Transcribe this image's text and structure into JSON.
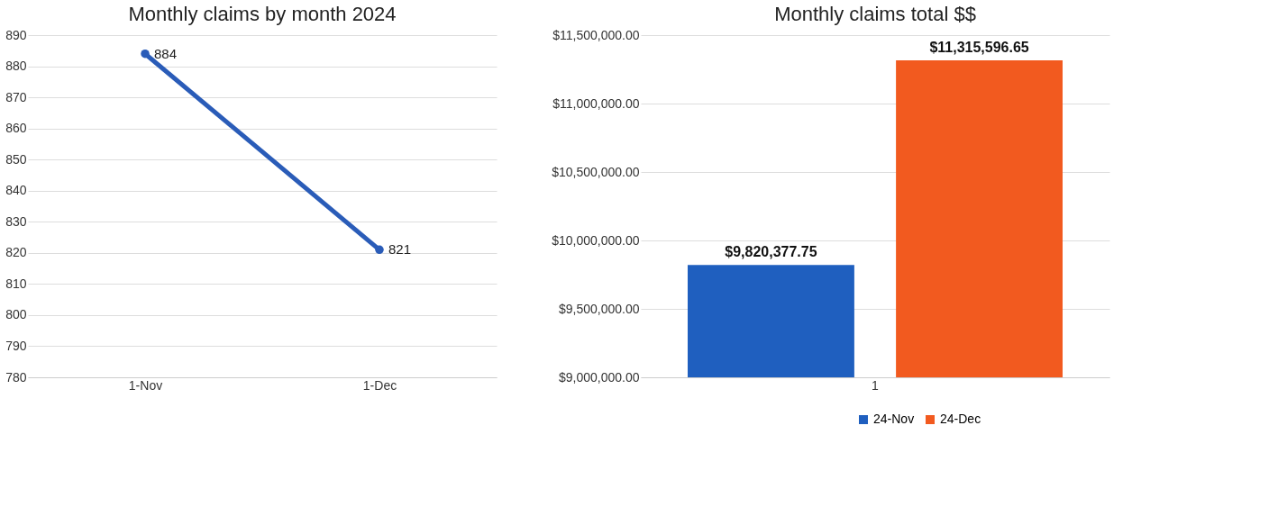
{
  "chart_data": [
    {
      "type": "line",
      "title": "Monthly claims by month 2024",
      "categories": [
        "1-Nov",
        "1-Dec"
      ],
      "series": [
        {
          "color": "#2a5cb8",
          "values": [
            884,
            821
          ]
        }
      ],
      "ylim": [
        780,
        890
      ],
      "yticks": [
        780,
        790,
        800,
        810,
        820,
        830,
        840,
        850,
        860,
        870,
        880,
        890
      ],
      "grid": "y",
      "marker": "circle",
      "data_labels": true
    },
    {
      "type": "bar",
      "title": "Monthly claims total $$",
      "categories": [
        "1"
      ],
      "series": [
        {
          "name": "24-Nov",
          "color": "#1f5fbf",
          "values": [
            9820377.75
          ],
          "value_labels": [
            "$9,820,377.75"
          ]
        },
        {
          "name": "24-Dec",
          "color": "#f25a1f",
          "values": [
            11315596.65
          ],
          "value_labels": [
            "$11,315,596.65"
          ]
        }
      ],
      "ylim": [
        9000000,
        11500000
      ],
      "yticks": [
        {
          "value": 9000000,
          "label": "$9,000,000.00"
        },
        {
          "value": 9500000,
          "label": "$9,500,000.00"
        },
        {
          "value": 10000000,
          "label": "$10,000,000.00"
        },
        {
          "value": 10500000,
          "label": "$10,500,000.00"
        },
        {
          "value": 11000000,
          "label": "$11,000,000.00"
        },
        {
          "value": 11500000,
          "label": "$11,500,000.00"
        }
      ],
      "grid": "y",
      "legend": "bottom"
    }
  ]
}
